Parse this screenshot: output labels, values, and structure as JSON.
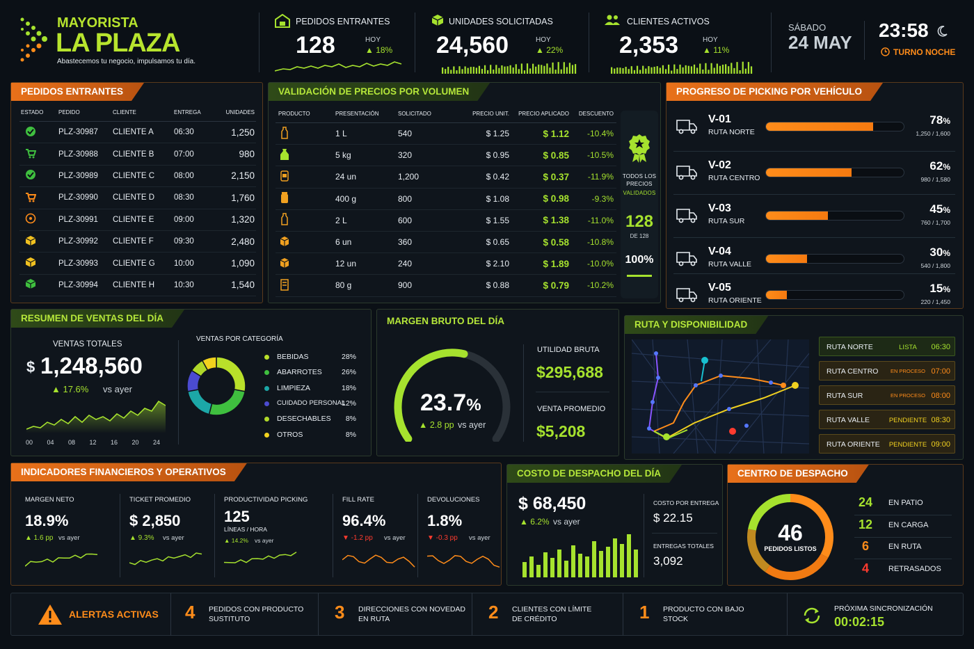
{
  "brand": {
    "line1": "MAYORISTA",
    "line2": "LA PLAZA",
    "tagline": "Abastecemos tu negocio, impulsamos tu día."
  },
  "header_kpis": [
    {
      "label": "PEDIDOS ENTRANTES",
      "value": "128",
      "period": "HOY",
      "delta": "▲ 18%",
      "icon": "store-cart-icon"
    },
    {
      "label": "UNIDADES SOLICITADAS",
      "value": "24,560",
      "period": "HOY",
      "delta": "▲ 22%",
      "icon": "box-icon"
    },
    {
      "label": "CLIENTES ACTIVOS",
      "value": "2,353",
      "period": "HOY",
      "delta": "▲ 11%",
      "icon": "users-icon"
    }
  ],
  "datetime": {
    "day": "SÁBADO",
    "date": "24 MAY",
    "time": "23:58",
    "shift": "TURNO NOCHE"
  },
  "orders": {
    "title": "PEDIDOS ENTRANTES",
    "headers": [
      "ESTADO",
      "PEDIDO",
      "CLIENTE",
      "ENTREGA",
      "UNIDADES"
    ],
    "rows": [
      {
        "status": "check",
        "id": "PLZ-30987",
        "client": "CLIENTE A",
        "time": "06:30",
        "units": "1,250"
      },
      {
        "status": "cart-green",
        "id": "PLZ-30988",
        "client": "CLIENTE B",
        "time": "07:00",
        "units": "980"
      },
      {
        "status": "check",
        "id": "PLZ-30989",
        "client": "CLIENTE C",
        "time": "08:00",
        "units": "2,150"
      },
      {
        "status": "cart-orange",
        "id": "PLZ-30990",
        "client": "CLIENTE D",
        "time": "08:30",
        "units": "1,760"
      },
      {
        "status": "clock",
        "id": "PLZ-30991",
        "client": "CLIENTE E",
        "time": "09:00",
        "units": "1,320"
      },
      {
        "status": "box-yellow",
        "id": "PLZ-30992",
        "client": "CLIENTE F",
        "time": "09:30",
        "units": "2,480"
      },
      {
        "status": "box-yellow",
        "id": "PLZ-30993",
        "client": "CLIENTE G",
        "time": "10:00",
        "units": "1,090"
      },
      {
        "status": "box-green",
        "id": "PLZ-30994",
        "client": "CLIENTE H",
        "time": "10:30",
        "units": "1,540"
      }
    ]
  },
  "prices": {
    "title": "VALIDACIÓN DE PRECIOS POR VOLUMEN",
    "headers": [
      "PRODUCTO",
      "PRESENTACIÓN",
      "SOLICITADO",
      "PRECIO UNIT.",
      "PRECIO APLICADO",
      "DESCUENTO"
    ],
    "rows": [
      {
        "icon": "bottle-icon",
        "pres": "1 L",
        "qty": "540",
        "unit": "$ 1.25",
        "applied": "$ 1.12",
        "disc": "-10.4%"
      },
      {
        "icon": "sack-icon",
        "pres": "5 kg",
        "qty": "320",
        "unit": "$ 0.95",
        "applied": "$ 0.85",
        "disc": "-10.5%"
      },
      {
        "icon": "can-icon",
        "pres": "24 un",
        "qty": "1,200",
        "unit": "$ 0.42",
        "applied": "$ 0.37",
        "disc": "-11.9%"
      },
      {
        "icon": "jar-icon",
        "pres": "400 g",
        "qty": "800",
        "unit": "$ 1.08",
        "applied": "$ 0.98",
        "disc": "-9.3%"
      },
      {
        "icon": "bottle-icon",
        "pres": "2 L",
        "qty": "600",
        "unit": "$ 1.55",
        "applied": "$ 1.38",
        "disc": "-11.0%"
      },
      {
        "icon": "box-icon",
        "pres": "6 un",
        "qty": "360",
        "unit": "$ 0.65",
        "applied": "$ 0.58",
        "disc": "-10.8%"
      },
      {
        "icon": "box-icon",
        "pres": "12 un",
        "qty": "240",
        "unit": "$ 2.10",
        "applied": "$ 1.89",
        "disc": "-10.0%"
      },
      {
        "icon": "pack-icon",
        "pres": "80 g",
        "qty": "900",
        "unit": "$ 0.88",
        "applied": "$ 0.79",
        "disc": "-10.2%"
      }
    ],
    "validation": {
      "line1": "TODOS LOS",
      "line2": "PRECIOS",
      "line3": "VALIDADOS",
      "count": "128",
      "of": "DE 128",
      "pct": "100%"
    }
  },
  "picking": {
    "title": "PROGRESO DE PICKING POR VEHÍCULO",
    "vehicles": [
      {
        "id": "V-01",
        "route": "RUTA NORTE",
        "pct": "78",
        "detail": "1,250 / 1,600",
        "value": 0.78
      },
      {
        "id": "V-02",
        "route": "RUTA CENTRO",
        "pct": "62",
        "detail": "980 / 1,580",
        "value": 0.62
      },
      {
        "id": "V-03",
        "route": "RUTA SUR",
        "pct": "45",
        "detail": "760 / 1,700",
        "value": 0.45
      },
      {
        "id": "V-04",
        "route": "RUTA VALLE",
        "pct": "30",
        "detail": "540 / 1,800",
        "value": 0.3
      },
      {
        "id": "V-05",
        "route": "RUTA ORIENTE",
        "pct": "15",
        "detail": "220 / 1,450",
        "value": 0.15
      }
    ],
    "pct_sign": "%"
  },
  "sales": {
    "title": "RESUMEN DE VENTAS DEL DÍA",
    "total_label": "VENTAS TOTALES",
    "currency": "$",
    "total": "1,248,560",
    "delta": "▲ 17.6%",
    "delta_suffix": "vs ayer",
    "hours": [
      "00",
      "04",
      "08",
      "12",
      "16",
      "20",
      "24"
    ],
    "cat_title": "VENTAS POR CATEGORÍA",
    "categories": [
      {
        "name": "BEBIDAS",
        "pct": "28%",
        "value": 28,
        "color": "#b9e02a"
      },
      {
        "name": "ABARROTES",
        "pct": "26%",
        "value": 26,
        "color": "#3fbf3f"
      },
      {
        "name": "LIMPIEZA",
        "pct": "18%",
        "value": 18,
        "color": "#1ca7a7"
      },
      {
        "name": "CUIDADO PERSONAL",
        "pct": "12%",
        "value": 12,
        "color": "#4b4bd0"
      },
      {
        "name": "DESECHABLES",
        "pct": "8%",
        "value": 8,
        "color": "#b0d82a"
      },
      {
        "name": "OTROS",
        "pct": "8%",
        "value": 8,
        "color": "#f2d21e"
      }
    ]
  },
  "margin": {
    "title": "MARGEN BRUTO DEL DÍA",
    "pct": "23.7",
    "pct_sign": "%",
    "delta": "▲ 2.8 pp",
    "delta_suffix": "vs ayer",
    "gauge_fraction": 0.55,
    "profit_label": "UTILIDAD BRUTA",
    "profit": "$295,688",
    "avg_label": "VENTA PROMEDIO",
    "avg": "$5,208"
  },
  "routes": {
    "title": "RUTA Y DISPONIBILIDAD",
    "items": [
      {
        "name": "RUTA NORTE",
        "status": "LISTA",
        "time": "06:30",
        "cls": "lime"
      },
      {
        "name": "RUTA CENTRO",
        "status": "EN PROCESO",
        "time": "07:00",
        "cls": "orange"
      },
      {
        "name": "RUTA SUR",
        "status": "EN PROCESO",
        "time": "08:00",
        "cls": "orange"
      },
      {
        "name": "RUTA VALLE",
        "status": "PENDIENTE",
        "time": "08:30",
        "cls": "yellow"
      },
      {
        "name": "RUTA ORIENTE",
        "status": "PENDIENTE",
        "time": "09:00",
        "cls": "yellow"
      }
    ]
  },
  "indicators": {
    "title": "INDICADORES FINANCIEROS Y OPERATIVOS",
    "items": [
      {
        "label": "MARGEN NETO",
        "value": "18.9%",
        "sub": "",
        "delta": "▲ 1.6 pp",
        "suffix": "vs ayer",
        "up": true
      },
      {
        "label": "TICKET PROMEDIO",
        "value": "$ 2,850",
        "sub": "",
        "delta": "▲ 9.3%",
        "suffix": "vs ayer",
        "up": true
      },
      {
        "label": "PRODUCTIVIDAD PICKING",
        "value": "125",
        "sub": "LÍNEAS / HORA",
        "delta": "▲ 14.2%",
        "suffix": "vs ayer",
        "up": true
      },
      {
        "label": "FILL RATE",
        "value": "96.4%",
        "sub": "",
        "delta": "▼ -1.2 pp",
        "suffix": "vs ayer",
        "up": false
      },
      {
        "label": "DEVOLUCIONES",
        "value": "1.8%",
        "sub": "",
        "delta": "▼ -0.3 pp",
        "suffix": "vs ayer",
        "up": false
      }
    ]
  },
  "dispatch_cost": {
    "title": "COSTO DE DESPACHO DEL DÍA",
    "value": "$ 68,450",
    "delta": "▲ 6.2%",
    "suffix": "vs ayer",
    "per_label": "COSTO POR ENTREGA",
    "per_value": "$ 22.15",
    "total_label": "ENTREGAS TOTALES",
    "total_value": "3,092"
  },
  "dispatch_center": {
    "title": "CENTRO DE DESPACHO",
    "count": "46",
    "count_label": "PEDIDOS LISTOS",
    "items": [
      {
        "n": "24",
        "label": "EN PATIO",
        "cls": "lime"
      },
      {
        "n": "12",
        "label": "EN CARGA",
        "cls": "lime"
      },
      {
        "n": "6",
        "label": "EN RUTA",
        "cls": "orange"
      },
      {
        "n": "4",
        "label": "RETRASADOS",
        "cls": "red"
      }
    ]
  },
  "alerts": {
    "title": "ALERTAS ACTIVAS",
    "items": [
      {
        "n": "4",
        "l1": "PEDIDOS CON PRODUCTO",
        "l2": "SUSTITUTO"
      },
      {
        "n": "3",
        "l1": "DIRECCIONES CON NOVEDAD",
        "l2": "EN RUTA"
      },
      {
        "n": "2",
        "l1": "CLIENTES CON LÍMITE",
        "l2": "DE CRÉDITO"
      },
      {
        "n": "1",
        "l1": "PRODUCTO CON BAJO",
        "l2": "STOCK"
      }
    ],
    "sync_label": "PRÓXIMA SINCRONIZACIÓN",
    "sync_time": "00:02:15"
  }
}
